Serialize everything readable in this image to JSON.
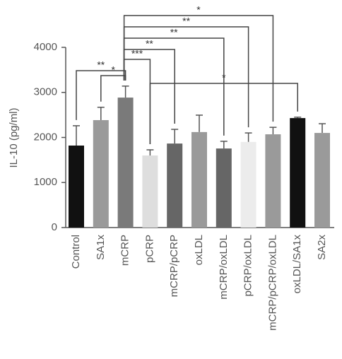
{
  "chart_data": {
    "type": "bar",
    "y_label": "IL-10 (pg/ml)",
    "categories": [
      "Control",
      "SA1x",
      "mCRP",
      "pCRP",
      "mCRP/pCRP",
      "oxLDL",
      "mCRP/oxLDL",
      "pCRP/oxLDL",
      "mCRP/pCRP/oxLDL",
      "oxLDL/SA1x",
      "SA2x"
    ],
    "values": [
      1820,
      2385,
      2885,
      1600,
      1865,
      2120,
      1755,
      1900,
      2070,
      2430,
      2100
    ],
    "errors": [
      440,
      285,
      255,
      125,
      315,
      375,
      160,
      200,
      155,
      20,
      205
    ],
    "colors": [
      "#111111",
      "#9a9a9a",
      "#7a7a7a",
      "#dedede",
      "#666666",
      "#9a9a9a",
      "#666666",
      "#ececec",
      "#9a9a9a",
      "#111111",
      "#9a9a9a"
    ],
    "ylim": [
      0,
      4000
    ],
    "yticks": [
      0,
      1000,
      2000,
      3000,
      4000
    ],
    "significance": [
      {
        "from": "Control",
        "to": "mCRP",
        "label": "**"
      },
      {
        "from": "SA1x",
        "to": "mCRP",
        "label": "*"
      },
      {
        "from": "mCRP",
        "to": "pCRP",
        "label": "***"
      },
      {
        "from": "mCRP",
        "to": "mCRP/pCRP",
        "label": "**"
      },
      {
        "from": "mCRP",
        "to": "mCRP/oxLDL",
        "label": "**"
      },
      {
        "from": "mCRP",
        "to": "pCRP/oxLDL",
        "label": "**"
      },
      {
        "from": "mCRP",
        "to": "mCRP/pCRP/oxLDL",
        "label": "*"
      },
      {
        "from": "pCRP",
        "to": "oxLDL/SA1x",
        "label": "*"
      }
    ]
  }
}
